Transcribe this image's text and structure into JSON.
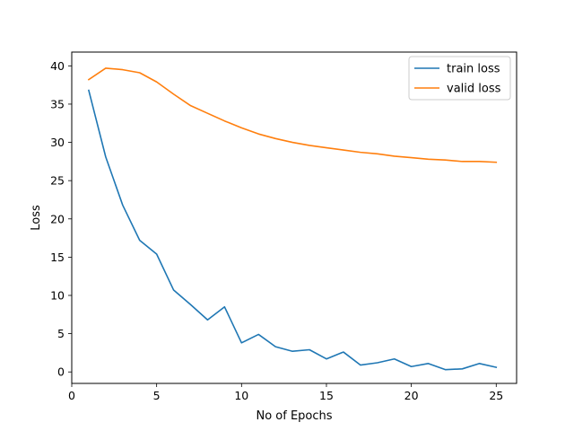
{
  "chart_data": {
    "type": "line",
    "title": "",
    "xlabel": "No of Epochs",
    "ylabel": "Loss",
    "xlim": [
      0,
      26.2
    ],
    "ylim": [
      -1.5,
      41.8
    ],
    "xticks": [
      0,
      5,
      10,
      15,
      20,
      25
    ],
    "yticks": [
      0,
      5,
      10,
      15,
      20,
      25,
      30,
      35,
      40
    ],
    "grid": false,
    "legend_position": "upper right",
    "x": [
      1,
      2,
      3,
      4,
      5,
      6,
      7,
      8,
      9,
      10,
      11,
      12,
      13,
      14,
      15,
      16,
      17,
      18,
      19,
      20,
      21,
      22,
      23,
      24,
      25
    ],
    "series": [
      {
        "name": "train loss",
        "color": "#1f77b4",
        "values": [
          36.8,
          28.1,
          21.8,
          17.2,
          15.4,
          10.7,
          8.8,
          6.8,
          8.5,
          3.8,
          4.9,
          3.3,
          2.7,
          2.9,
          1.7,
          2.6,
          0.9,
          1.2,
          1.7,
          0.7,
          1.1,
          0.3,
          0.4,
          1.1,
          0.6
        ]
      },
      {
        "name": "valid loss",
        "color": "#ff7f0e",
        "values": [
          38.2,
          39.7,
          39.5,
          39.1,
          37.9,
          36.3,
          34.8,
          33.8,
          32.8,
          31.9,
          31.1,
          30.5,
          30.0,
          29.6,
          29.3,
          29.0,
          28.7,
          28.5,
          28.2,
          28.0,
          27.8,
          27.7,
          27.5,
          27.5,
          27.4
        ]
      }
    ]
  }
}
